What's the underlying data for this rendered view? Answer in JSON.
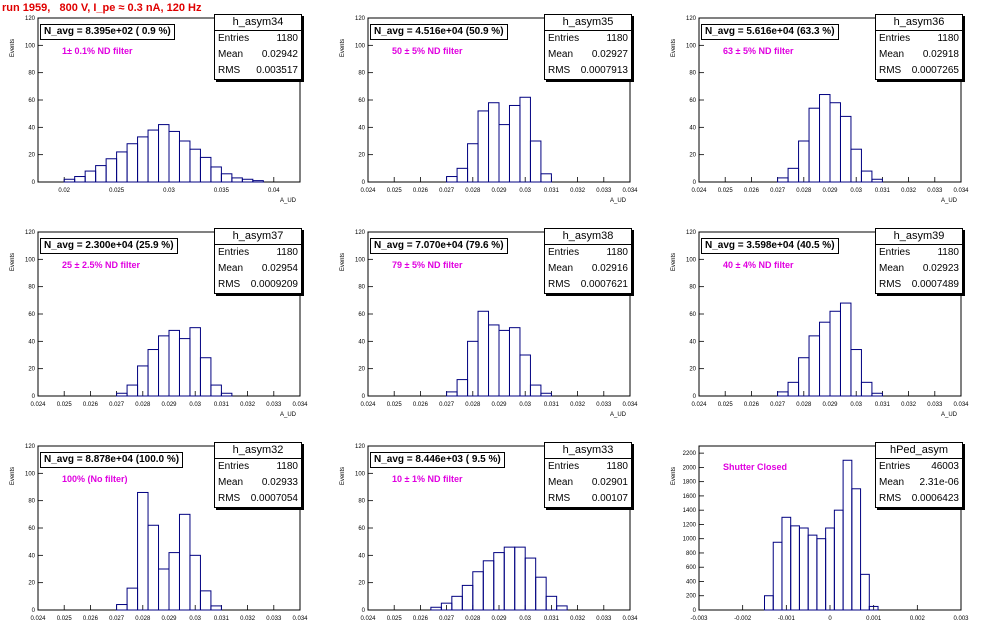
{
  "header": {
    "title": "run 1959,   800 V, I_pe ≈ 0.3 nA, 120 Hz"
  },
  "labels": {
    "ylabel": "Events",
    "xlabel": "A_UD"
  },
  "colors": {
    "histogram": "#000080",
    "title": "#e00000",
    "filter_label": "#e000e0"
  },
  "panels": [
    {
      "name": "h_asym34",
      "navg": "N_avg = 8.395e+02 ( 0.9 %)",
      "filter": "1± 0.1% ND filter",
      "stats": [
        [
          "Entries",
          "1180"
        ],
        [
          "Mean",
          "0.02942"
        ],
        [
          "RMS",
          "0.003517"
        ]
      ],
      "xticks": [
        "0.02",
        "0.025",
        "0.03",
        "0.035",
        "0.04"
      ],
      "yticks": [
        "0",
        "20",
        "40",
        "60",
        "80",
        "100",
        "120"
      ]
    },
    {
      "name": "h_asym35",
      "navg": "N_avg = 4.516e+04 (50.9 %)",
      "filter": "50 ± 5% ND filter",
      "stats": [
        [
          "Entries",
          "1180"
        ],
        [
          "Mean",
          "0.02927"
        ],
        [
          "RMS",
          "0.0007913"
        ]
      ],
      "xticks": [
        "0.024",
        "0.025",
        "0.026",
        "0.027",
        "0.028",
        "0.029",
        "0.03",
        "0.031",
        "0.032",
        "0.033",
        "0.034"
      ],
      "yticks": [
        "0",
        "20",
        "40",
        "60",
        "80",
        "100",
        "120"
      ]
    },
    {
      "name": "h_asym36",
      "navg": "N_avg = 5.616e+04 (63.3 %)",
      "filter": "63 ± 5% ND filter",
      "stats": [
        [
          "Entries",
          "1180"
        ],
        [
          "Mean",
          "0.02918"
        ],
        [
          "RMS",
          "0.0007265"
        ]
      ],
      "xticks": [
        "0.024",
        "0.025",
        "0.026",
        "0.027",
        "0.028",
        "0.029",
        "0.03",
        "0.031",
        "0.032",
        "0.033",
        "0.034"
      ],
      "yticks": [
        "0",
        "20",
        "40",
        "60",
        "80",
        "100",
        "120"
      ]
    },
    {
      "name": "h_asym37",
      "navg": "N_avg = 2.300e+04 (25.9 %)",
      "filter": "25 ± 2.5% ND filter",
      "stats": [
        [
          "Entries",
          "1180"
        ],
        [
          "Mean",
          "0.02954"
        ],
        [
          "RMS",
          "0.0009209"
        ]
      ],
      "xticks": [
        "0.024",
        "0.025",
        "0.026",
        "0.027",
        "0.028",
        "0.029",
        "0.03",
        "0.031",
        "0.032",
        "0.033",
        "0.034"
      ],
      "yticks": [
        "0",
        "20",
        "40",
        "60",
        "80",
        "100",
        "120"
      ]
    },
    {
      "name": "h_asym38",
      "navg": "N_avg = 7.070e+04 (79.6 %)",
      "filter": "79 ± 5% ND filter",
      "stats": [
        [
          "Entries",
          "1180"
        ],
        [
          "Mean",
          "0.02916"
        ],
        [
          "RMS",
          "0.0007621"
        ]
      ],
      "xticks": [
        "0.024",
        "0.025",
        "0.026",
        "0.027",
        "0.028",
        "0.029",
        "0.03",
        "0.031",
        "0.032",
        "0.033",
        "0.034"
      ],
      "yticks": [
        "0",
        "20",
        "40",
        "60",
        "80",
        "100",
        "120"
      ]
    },
    {
      "name": "h_asym39",
      "navg": "N_avg = 3.598e+04 (40.5 %)",
      "filter": "40 ± 4% ND filter",
      "stats": [
        [
          "Entries",
          "1180"
        ],
        [
          "Mean",
          "0.02923"
        ],
        [
          "RMS",
          "0.0007489"
        ]
      ],
      "xticks": [
        "0.024",
        "0.025",
        "0.026",
        "0.027",
        "0.028",
        "0.029",
        "0.03",
        "0.031",
        "0.032",
        "0.033",
        "0.034"
      ],
      "yticks": [
        "0",
        "20",
        "40",
        "60",
        "80",
        "100",
        "120"
      ]
    },
    {
      "name": "h_asym32",
      "navg": "N_avg = 8.878e+04 (100.0 %)",
      "filter": "100% (No filter)",
      "stats": [
        [
          "Entries",
          "1180"
        ],
        [
          "Mean",
          "0.02933"
        ],
        [
          "RMS",
          "0.0007054"
        ]
      ],
      "xticks": [
        "0.024",
        "0.025",
        "0.026",
        "0.027",
        "0.028",
        "0.029",
        "0.03",
        "0.031",
        "0.032",
        "0.033",
        "0.034"
      ],
      "yticks": [
        "0",
        "20",
        "40",
        "60",
        "80",
        "100",
        "120"
      ]
    },
    {
      "name": "h_asym33",
      "navg": "N_avg = 8.446e+03 ( 9.5 %)",
      "filter": "10 ± 1% ND filter",
      "stats": [
        [
          "Entries",
          "1180"
        ],
        [
          "Mean",
          "0.02901"
        ],
        [
          "RMS",
          "0.00107"
        ]
      ],
      "xticks": [
        "0.024",
        "0.025",
        "0.026",
        "0.027",
        "0.028",
        "0.029",
        "0.03",
        "0.031",
        "0.032",
        "0.033",
        "0.034"
      ],
      "yticks": [
        "0",
        "20",
        "40",
        "60",
        "80",
        "100",
        "120"
      ]
    },
    {
      "name": "hPed_asym",
      "navg": "",
      "filter": "Shutter Closed",
      "stats": [
        [
          "Entries",
          "46003"
        ],
        [
          "Mean",
          "2.31e-06"
        ],
        [
          "RMS",
          "0.0006423"
        ]
      ],
      "xticks": [
        "-0.003",
        "-0.002",
        "-0.001",
        "0",
        "0.001",
        "0.002",
        "0.003"
      ],
      "yticks": [
        "0",
        "200",
        "400",
        "600",
        "800",
        "1000",
        "1200",
        "1400",
        "1600",
        "1800",
        "2000",
        "2200"
      ]
    }
  ],
  "chart_data": [
    {
      "type": "bar",
      "title": "h_asym34",
      "xlabel": "A_UD",
      "ylabel": "Events",
      "xlim": [
        0.0175,
        0.0425
      ],
      "ylim": [
        0,
        120
      ],
      "x": [
        0.0205,
        0.0215,
        0.0225,
        0.0235,
        0.0245,
        0.0255,
        0.0265,
        0.0275,
        0.0285,
        0.0295,
        0.0305,
        0.0315,
        0.0325,
        0.0335,
        0.0345,
        0.0355,
        0.0365,
        0.0375,
        0.0385
      ],
      "values": [
        2,
        4,
        8,
        12,
        17,
        22,
        28,
        33,
        38,
        42,
        37,
        30,
        24,
        18,
        11,
        6,
        3,
        2,
        1
      ]
    },
    {
      "type": "bar",
      "title": "h_asym35",
      "xlabel": "A_UD",
      "ylabel": "Events",
      "xlim": [
        0.024,
        0.034
      ],
      "ylim": [
        0,
        120
      ],
      "x": [
        0.0272,
        0.0276,
        0.028,
        0.0284,
        0.0288,
        0.0292,
        0.0296,
        0.03,
        0.0304,
        0.0308
      ],
      "values": [
        4,
        10,
        28,
        52,
        58,
        42,
        56,
        62,
        30,
        6
      ]
    },
    {
      "type": "bar",
      "title": "h_asym36",
      "xlabel": "A_UD",
      "ylabel": "Events",
      "xlim": [
        0.024,
        0.034
      ],
      "ylim": [
        0,
        120
      ],
      "x": [
        0.0272,
        0.0276,
        0.028,
        0.0284,
        0.0288,
        0.0292,
        0.0296,
        0.03,
        0.0304,
        0.0308
      ],
      "values": [
        3,
        10,
        30,
        54,
        64,
        58,
        48,
        24,
        8,
        2
      ]
    },
    {
      "type": "bar",
      "title": "h_asym37",
      "xlabel": "A_UD",
      "ylabel": "Events",
      "xlim": [
        0.024,
        0.034
      ],
      "ylim": [
        0,
        120
      ],
      "x": [
        0.0272,
        0.0276,
        0.028,
        0.0284,
        0.0288,
        0.0292,
        0.0296,
        0.03,
        0.0304,
        0.0308,
        0.0312
      ],
      "values": [
        2,
        8,
        22,
        34,
        44,
        48,
        42,
        50,
        28,
        8,
        2
      ]
    },
    {
      "type": "bar",
      "title": "h_asym38",
      "xlabel": "A_UD",
      "ylabel": "Events",
      "xlim": [
        0.024,
        0.034
      ],
      "ylim": [
        0,
        120
      ],
      "x": [
        0.0272,
        0.0276,
        0.028,
        0.0284,
        0.0288,
        0.0292,
        0.0296,
        0.03,
        0.0304,
        0.0308
      ],
      "values": [
        3,
        12,
        40,
        62,
        52,
        48,
        50,
        30,
        8,
        2
      ]
    },
    {
      "type": "bar",
      "title": "h_asym39",
      "xlabel": "A_UD",
      "ylabel": "Events",
      "xlim": [
        0.024,
        0.034
      ],
      "ylim": [
        0,
        120
      ],
      "x": [
        0.0272,
        0.0276,
        0.028,
        0.0284,
        0.0288,
        0.0292,
        0.0296,
        0.03,
        0.0304,
        0.0308
      ],
      "values": [
        3,
        10,
        28,
        44,
        54,
        62,
        68,
        34,
        10,
        2
      ]
    },
    {
      "type": "bar",
      "title": "h_asym32",
      "xlabel": "A_UD",
      "ylabel": "Events",
      "xlim": [
        0.024,
        0.034
      ],
      "ylim": [
        0,
        120
      ],
      "x": [
        0.0272,
        0.0276,
        0.028,
        0.0284,
        0.0288,
        0.0292,
        0.0296,
        0.03,
        0.0304,
        0.0308
      ],
      "values": [
        4,
        16,
        86,
        62,
        30,
        42,
        70,
        40,
        14,
        3
      ]
    },
    {
      "type": "bar",
      "title": "h_asym33",
      "xlabel": "A_UD",
      "ylabel": "Events",
      "xlim": [
        0.024,
        0.034
      ],
      "ylim": [
        0,
        120
      ],
      "x": [
        0.0266,
        0.027,
        0.0274,
        0.0278,
        0.0282,
        0.0286,
        0.029,
        0.0294,
        0.0298,
        0.0302,
        0.0306,
        0.031,
        0.0314
      ],
      "values": [
        2,
        5,
        10,
        18,
        28,
        36,
        42,
        46,
        46,
        38,
        24,
        10,
        3
      ]
    },
    {
      "type": "bar",
      "title": "hPed_asym",
      "xlabel": "A_UD",
      "ylabel": "Events",
      "xlim": [
        -0.003,
        0.003
      ],
      "ylim": [
        0,
        2300
      ],
      "x": [
        -0.0014,
        -0.0012,
        -0.001,
        -0.0008,
        -0.0006,
        -0.0004,
        -0.0002,
        0,
        0.0002,
        0.0004,
        0.0006,
        0.0008,
        0.001
      ],
      "values": [
        200,
        950,
        1300,
        1180,
        1150,
        1050,
        1000,
        1150,
        1400,
        2100,
        1700,
        500,
        50
      ]
    }
  ]
}
